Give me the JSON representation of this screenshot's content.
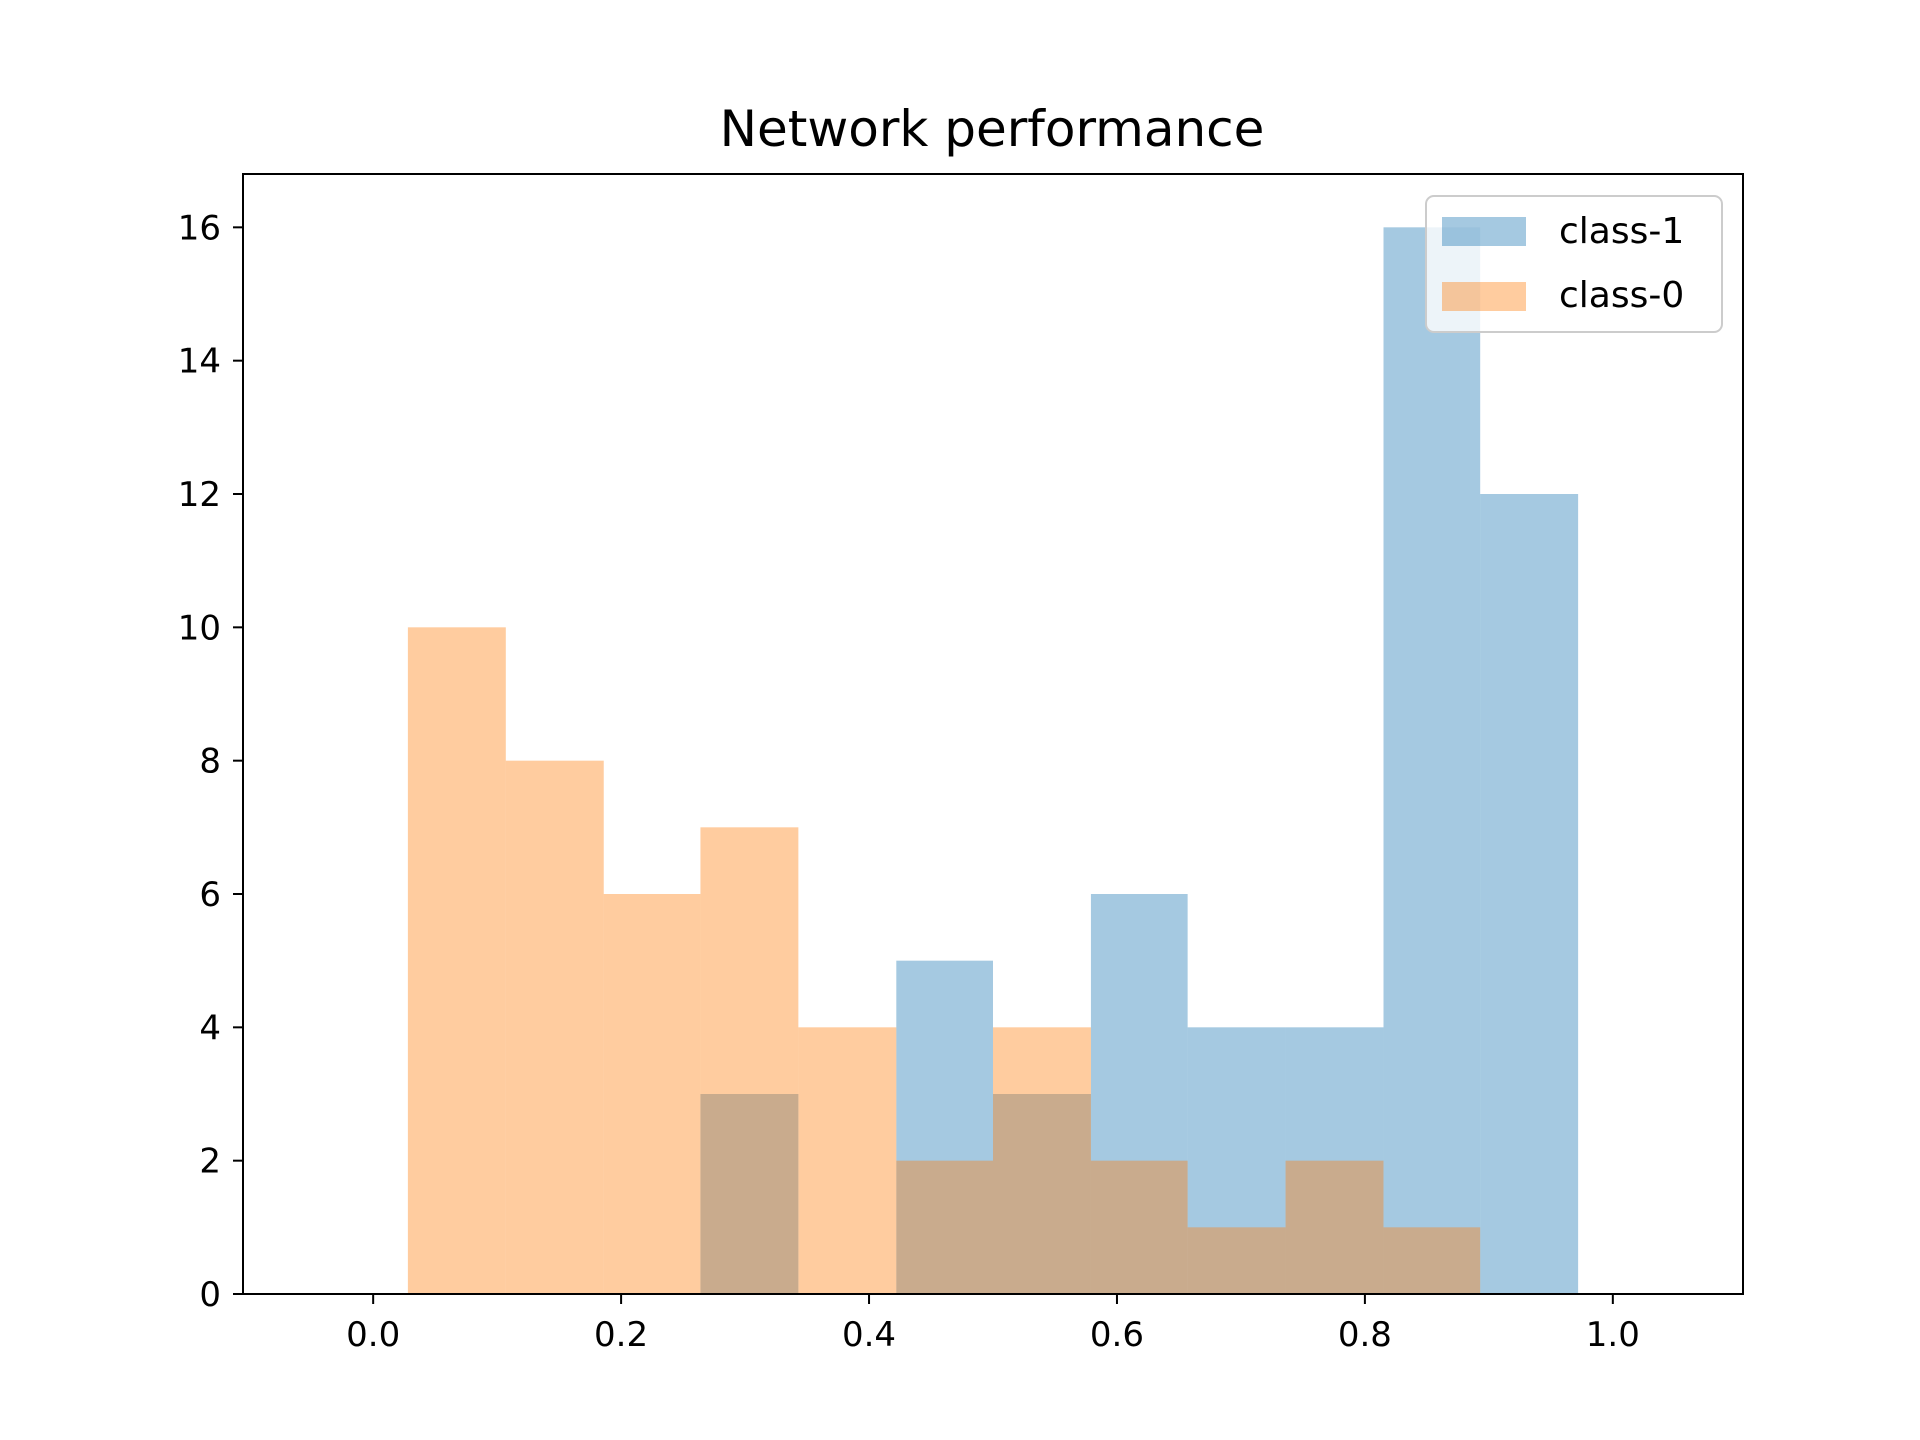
{
  "chart_data": {
    "type": "bar",
    "title": "Network performance",
    "xlabel": "",
    "ylabel": "",
    "xlim": [
      -0.105,
      1.105
    ],
    "ylim": [
      0,
      16.8
    ],
    "x_ticks": [
      {
        "value": 0.0,
        "label": "0.0"
      },
      {
        "value": 0.2,
        "label": "0.2"
      },
      {
        "value": 0.4,
        "label": "0.4"
      },
      {
        "value": 0.6,
        "label": "0.6"
      },
      {
        "value": 0.8,
        "label": "0.8"
      },
      {
        "value": 1.0,
        "label": "1.0"
      }
    ],
    "y_ticks": [
      {
        "value": 0,
        "label": "0"
      },
      {
        "value": 2,
        "label": "2"
      },
      {
        "value": 4,
        "label": "4"
      },
      {
        "value": 6,
        "label": "6"
      },
      {
        "value": 8,
        "label": "8"
      },
      {
        "value": 10,
        "label": "10"
      },
      {
        "value": 12,
        "label": "12"
      },
      {
        "value": 14,
        "label": "14"
      },
      {
        "value": 16,
        "label": "16"
      }
    ],
    "grid": false,
    "legend_position": "top-right",
    "series": [
      {
        "name": "class-1",
        "color": "#1f77b4",
        "alpha": 0.4,
        "bins": [
          {
            "start": 0.264,
            "end": 0.343,
            "count": 3
          },
          {
            "start": 0.343,
            "end": 0.422,
            "count": 0
          },
          {
            "start": 0.422,
            "end": 0.5,
            "count": 5
          },
          {
            "start": 0.5,
            "end": 0.579,
            "count": 3
          },
          {
            "start": 0.579,
            "end": 0.657,
            "count": 6
          },
          {
            "start": 0.657,
            "end": 0.736,
            "count": 4
          },
          {
            "start": 0.736,
            "end": 0.815,
            "count": 4
          },
          {
            "start": 0.815,
            "end": 0.893,
            "count": 16
          },
          {
            "start": 0.893,
            "end": 0.972,
            "count": 12
          }
        ]
      },
      {
        "name": "class-0",
        "color": "#ff7f0e",
        "alpha": 0.4,
        "bins": [
          {
            "start": 0.028,
            "end": 0.107,
            "count": 10
          },
          {
            "start": 0.107,
            "end": 0.186,
            "count": 8
          },
          {
            "start": 0.186,
            "end": 0.264,
            "count": 6
          },
          {
            "start": 0.264,
            "end": 0.343,
            "count": 7
          },
          {
            "start": 0.343,
            "end": 0.422,
            "count": 4
          },
          {
            "start": 0.422,
            "end": 0.5,
            "count": 2
          },
          {
            "start": 0.5,
            "end": 0.579,
            "count": 4
          },
          {
            "start": 0.579,
            "end": 0.657,
            "count": 2
          },
          {
            "start": 0.657,
            "end": 0.736,
            "count": 1
          },
          {
            "start": 0.736,
            "end": 0.815,
            "count": 2
          },
          {
            "start": 0.815,
            "end": 0.893,
            "count": 1
          }
        ]
      }
    ]
  }
}
